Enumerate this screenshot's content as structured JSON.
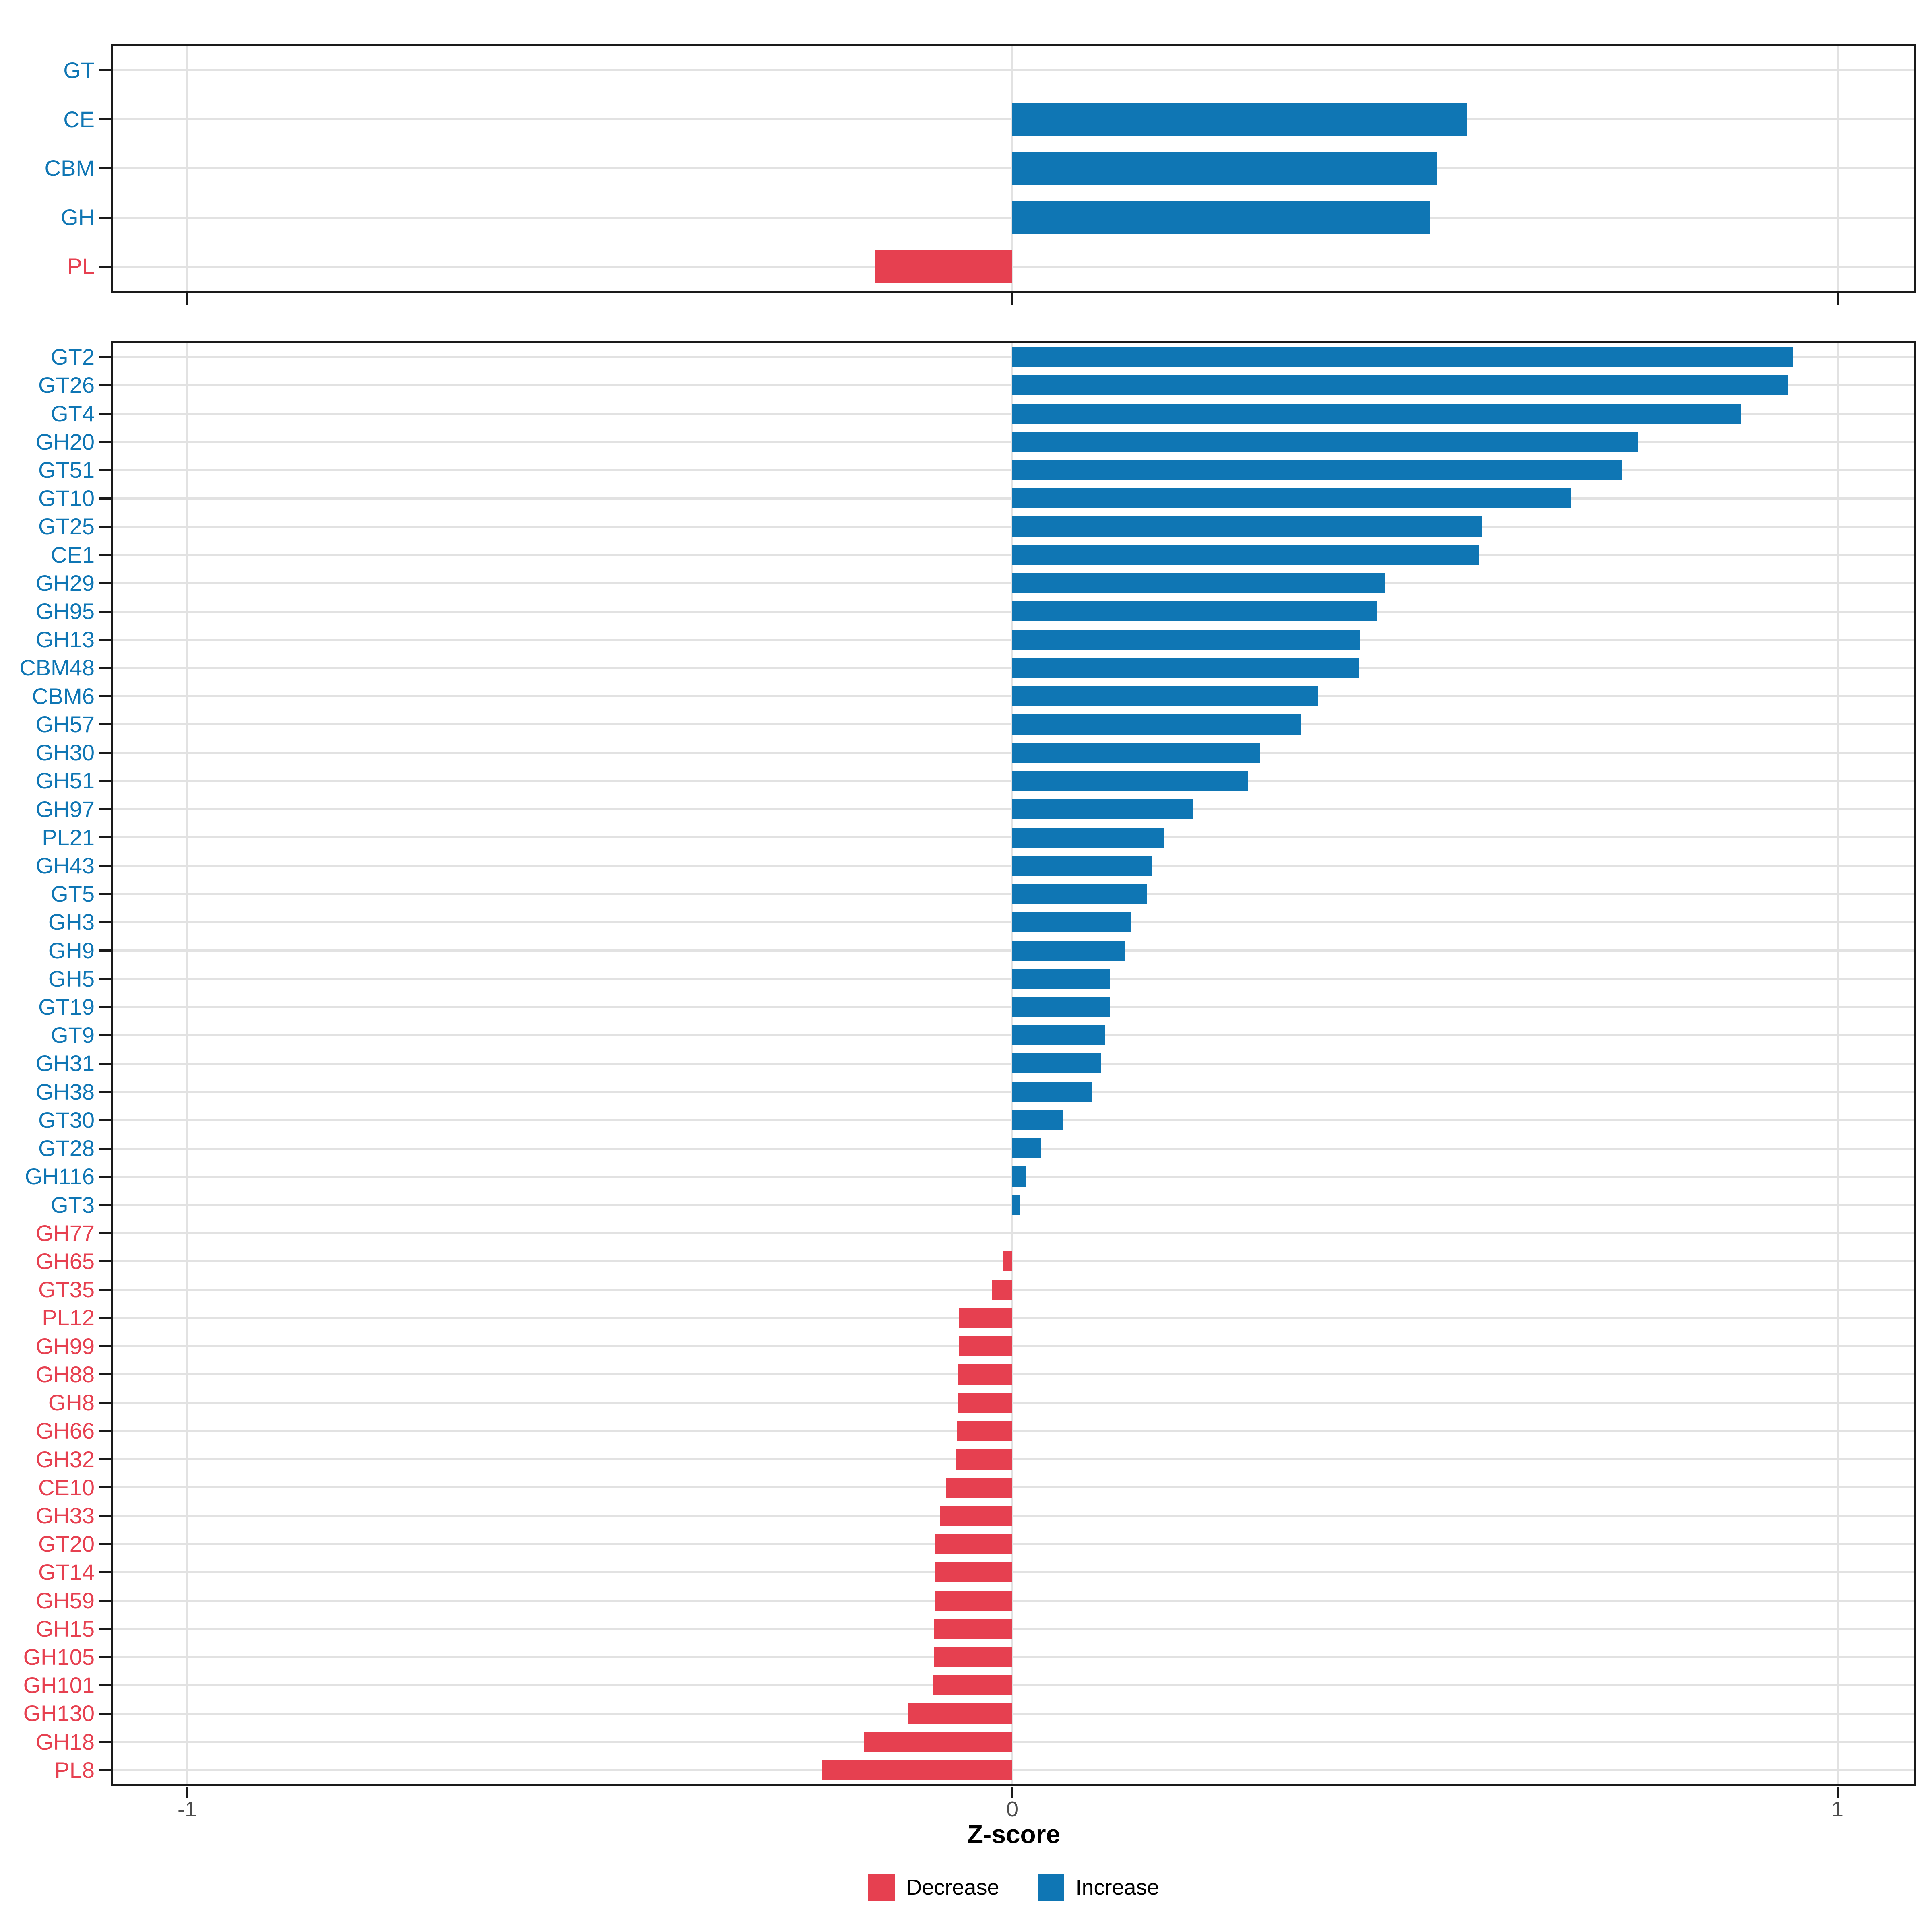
{
  "chart_data": {
    "type": "bar",
    "orientation": "horizontal",
    "xlabel": "Z-score",
    "x_ticks": [
      "-1",
      "0",
      "1"
    ],
    "x_tick_values": [
      -1,
      0,
      1
    ],
    "xlim": [
      -1.09,
      1.09
    ],
    "grid": "major",
    "legend_position": "bottom",
    "colors": {
      "increase": "#0F76B4",
      "decrease": "#E64050",
      "gridline": "#E2E2E2",
      "panel_border": "#1A1A1A",
      "axis_text": "#4D4D4D",
      "axis_title": "#000000"
    },
    "legend": {
      "items": [
        {
          "label": "Decrease",
          "key": "decrease"
        },
        {
          "label": "Increase",
          "key": "increase"
        }
      ]
    },
    "panels": [
      {
        "items": [
          {
            "label": "GT",
            "value": 0.0,
            "dir": "increase"
          },
          {
            "label": "CE",
            "value": 0.551,
            "dir": "increase"
          },
          {
            "label": "CBM",
            "value": 0.515,
            "dir": "increase"
          },
          {
            "label": "GH",
            "value": 0.506,
            "dir": "increase"
          },
          {
            "label": "PL",
            "value": -0.167,
            "dir": "decrease"
          }
        ]
      },
      {
        "items": [
          {
            "label": "GT2",
            "value": 0.946,
            "dir": "increase"
          },
          {
            "label": "GT26",
            "value": 0.94,
            "dir": "increase"
          },
          {
            "label": "GT4",
            "value": 0.883,
            "dir": "increase"
          },
          {
            "label": "GH20",
            "value": 0.758,
            "dir": "increase"
          },
          {
            "label": "GT51",
            "value": 0.739,
            "dir": "increase"
          },
          {
            "label": "GT10",
            "value": 0.677,
            "dir": "increase"
          },
          {
            "label": "GT25",
            "value": 0.569,
            "dir": "increase"
          },
          {
            "label": "CE1",
            "value": 0.566,
            "dir": "increase"
          },
          {
            "label": "GH29",
            "value": 0.451,
            "dir": "increase"
          },
          {
            "label": "GH95",
            "value": 0.442,
            "dir": "increase"
          },
          {
            "label": "GH13",
            "value": 0.422,
            "dir": "increase"
          },
          {
            "label": "CBM48",
            "value": 0.42,
            "dir": "increase"
          },
          {
            "label": "CBM6",
            "value": 0.37,
            "dir": "increase"
          },
          {
            "label": "GH57",
            "value": 0.35,
            "dir": "increase"
          },
          {
            "label": "GH30",
            "value": 0.3,
            "dir": "increase"
          },
          {
            "label": "GH51",
            "value": 0.286,
            "dir": "increase"
          },
          {
            "label": "GH97",
            "value": 0.219,
            "dir": "increase"
          },
          {
            "label": "PL21",
            "value": 0.184,
            "dir": "increase"
          },
          {
            "label": "GH43",
            "value": 0.169,
            "dir": "increase"
          },
          {
            "label": "GT5",
            "value": 0.163,
            "dir": "increase"
          },
          {
            "label": "GH3",
            "value": 0.144,
            "dir": "increase"
          },
          {
            "label": "GH9",
            "value": 0.136,
            "dir": "increase"
          },
          {
            "label": "GH5",
            "value": 0.119,
            "dir": "increase"
          },
          {
            "label": "GT19",
            "value": 0.118,
            "dir": "increase"
          },
          {
            "label": "GT9",
            "value": 0.112,
            "dir": "increase"
          },
          {
            "label": "GH31",
            "value": 0.108,
            "dir": "increase"
          },
          {
            "label": "GH38",
            "value": 0.097,
            "dir": "increase"
          },
          {
            "label": "GT30",
            "value": 0.062,
            "dir": "increase"
          },
          {
            "label": "GT28",
            "value": 0.035,
            "dir": "increase"
          },
          {
            "label": "GH116",
            "value": 0.016,
            "dir": "increase"
          },
          {
            "label": "GT3",
            "value": 0.009,
            "dir": "increase"
          },
          {
            "label": "GH77",
            "value": 0.0,
            "dir": "decrease"
          },
          {
            "label": "GH65",
            "value": -0.011,
            "dir": "decrease"
          },
          {
            "label": "GT35",
            "value": -0.025,
            "dir": "decrease"
          },
          {
            "label": "PL12",
            "value": -0.065,
            "dir": "decrease"
          },
          {
            "label": "GH99",
            "value": -0.065,
            "dir": "decrease"
          },
          {
            "label": "GH88",
            "value": -0.066,
            "dir": "decrease"
          },
          {
            "label": "GH8",
            "value": -0.066,
            "dir": "decrease"
          },
          {
            "label": "GH66",
            "value": -0.067,
            "dir": "decrease"
          },
          {
            "label": "GH32",
            "value": -0.068,
            "dir": "decrease"
          },
          {
            "label": "CE10",
            "value": -0.08,
            "dir": "decrease"
          },
          {
            "label": "GH33",
            "value": -0.088,
            "dir": "decrease"
          },
          {
            "label": "GT20",
            "value": -0.094,
            "dir": "decrease"
          },
          {
            "label": "GT14",
            "value": -0.094,
            "dir": "decrease"
          },
          {
            "label": "GH59",
            "value": -0.094,
            "dir": "decrease"
          },
          {
            "label": "GH15",
            "value": -0.095,
            "dir": "decrease"
          },
          {
            "label": "GH105",
            "value": -0.095,
            "dir": "decrease"
          },
          {
            "label": "GH101",
            "value": -0.096,
            "dir": "decrease"
          },
          {
            "label": "GH130",
            "value": -0.127,
            "dir": "decrease"
          },
          {
            "label": "GH18",
            "value": -0.18,
            "dir": "decrease"
          },
          {
            "label": "PL8",
            "value": -0.231,
            "dir": "decrease"
          }
        ]
      }
    ]
  }
}
